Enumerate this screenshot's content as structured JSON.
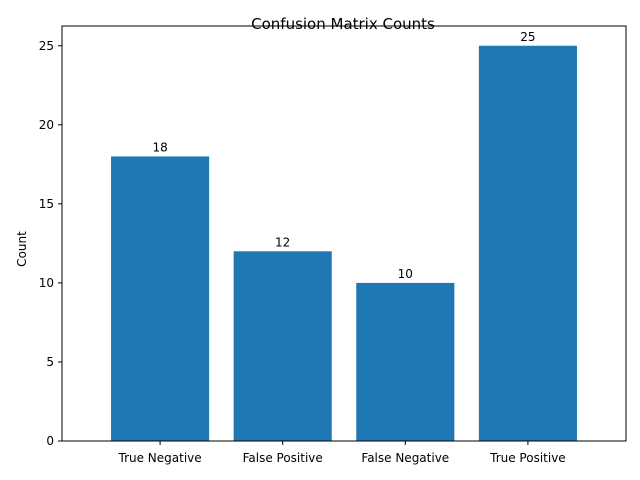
{
  "chart_data": {
    "type": "bar",
    "title": "Confusion Matrix Counts",
    "xlabel": "",
    "ylabel": "Count",
    "categories": [
      "True Negative",
      "False Positive",
      "False Negative",
      "True Positive"
    ],
    "values": [
      18,
      12,
      10,
      25
    ],
    "data_labels": [
      "18",
      "12",
      "10",
      "25"
    ],
    "ylim": [
      0,
      26.25
    ],
    "yticks": [
      0,
      5,
      10,
      15,
      20,
      25
    ],
    "bar_color": "#1f77b4",
    "grid": false,
    "legend": "none"
  }
}
